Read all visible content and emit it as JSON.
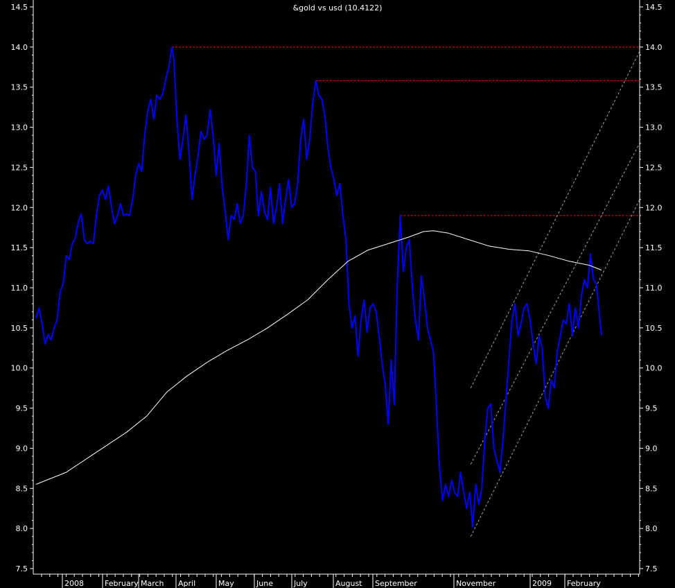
{
  "chart_data": {
    "type": "line",
    "title": "&gold vs usd (10.4122)",
    "xlabel": "",
    "ylabel": "",
    "ylim": [
      7.5,
      14.5
    ],
    "y_ticks": [
      "7.5",
      "8.0",
      "8.5",
      "9.0",
      "9.5",
      "10.0",
      "10.5",
      "11.0",
      "11.5",
      "12.0",
      "12.5",
      "13.0",
      "13.5",
      "14.0",
      "14.5"
    ],
    "x_tick_labels": [
      "2008",
      "February",
      "March",
      "April",
      "May",
      "June",
      "July",
      "August",
      "September",
      "November",
      "2009",
      "February"
    ],
    "grid": false,
    "background_color": "#000000",
    "series": [
      {
        "color": "#0000ff",
        "values": [
          [
            0,
            10.62
          ],
          [
            3,
            10.75
          ],
          [
            6,
            10.55
          ],
          [
            9,
            10.3
          ],
          [
            12,
            10.42
          ],
          [
            15,
            10.35
          ],
          [
            18,
            10.5
          ],
          [
            21,
            10.6
          ],
          [
            24,
            10.95
          ],
          [
            27,
            11.05
          ],
          [
            30,
            11.4
          ],
          [
            33,
            11.35
          ],
          [
            36,
            11.55
          ],
          [
            39,
            11.62
          ],
          [
            42,
            11.82
          ],
          [
            45,
            11.92
          ],
          [
            48,
            11.6
          ],
          [
            51,
            11.55
          ],
          [
            54,
            11.58
          ],
          [
            57,
            11.55
          ],
          [
            60,
            11.9
          ],
          [
            63,
            12.15
          ],
          [
            66,
            12.22
          ],
          [
            69,
            12.1
          ],
          [
            72,
            12.27
          ],
          [
            75,
            12.0
          ],
          [
            78,
            11.8
          ],
          [
            81,
            11.9
          ],
          [
            84,
            12.05
          ],
          [
            87,
            11.9
          ],
          [
            90,
            11.92
          ],
          [
            93,
            11.9
          ],
          [
            96,
            12.1
          ],
          [
            99,
            12.4
          ],
          [
            102,
            12.55
          ],
          [
            105,
            12.45
          ],
          [
            108,
            12.9
          ],
          [
            111,
            13.2
          ],
          [
            114,
            13.35
          ],
          [
            117,
            13.1
          ],
          [
            120,
            13.4
          ],
          [
            123,
            13.35
          ],
          [
            126,
            13.42
          ],
          [
            129,
            13.6
          ],
          [
            132,
            13.75
          ],
          [
            135,
            14.0
          ],
          [
            137,
            13.85
          ],
          [
            140,
            13.1
          ],
          [
            143,
            12.6
          ],
          [
            146,
            12.85
          ],
          [
            149,
            13.15
          ],
          [
            152,
            12.7
          ],
          [
            155,
            12.1
          ],
          [
            158,
            12.4
          ],
          [
            161,
            12.65
          ],
          [
            164,
            12.95
          ],
          [
            167,
            12.85
          ],
          [
            170,
            12.9
          ],
          [
            173,
            13.22
          ],
          [
            176,
            12.9
          ],
          [
            179,
            12.4
          ],
          [
            182,
            12.8
          ],
          [
            185,
            12.25
          ],
          [
            188,
            11.95
          ],
          [
            191,
            11.6
          ],
          [
            194,
            11.9
          ],
          [
            197,
            11.85
          ],
          [
            200,
            12.05
          ],
          [
            203,
            11.8
          ],
          [
            206,
            11.9
          ],
          [
            209,
            12.3
          ],
          [
            212,
            12.9
          ],
          [
            215,
            12.5
          ],
          [
            218,
            12.45
          ],
          [
            221,
            11.9
          ],
          [
            224,
            12.2
          ],
          [
            227,
            11.95
          ],
          [
            230,
            11.85
          ],
          [
            233,
            12.25
          ],
          [
            236,
            11.8
          ],
          [
            239,
            12.0
          ],
          [
            242,
            12.3
          ],
          [
            245,
            11.8
          ],
          [
            248,
            12.1
          ],
          [
            251,
            12.35
          ],
          [
            254,
            12.0
          ],
          [
            257,
            12.05
          ],
          [
            260,
            12.3
          ],
          [
            263,
            12.85
          ],
          [
            266,
            13.1
          ],
          [
            269,
            12.6
          ],
          [
            272,
            12.85
          ],
          [
            275,
            13.3
          ],
          [
            278,
            13.58
          ],
          [
            281,
            13.4
          ],
          [
            284,
            13.35
          ],
          [
            287,
            13.15
          ],
          [
            290,
            12.75
          ],
          [
            293,
            12.5
          ],
          [
            296,
            12.35
          ],
          [
            299,
            12.15
          ],
          [
            302,
            12.3
          ],
          [
            305,
            11.9
          ],
          [
            308,
            11.6
          ],
          [
            311,
            10.8
          ],
          [
            314,
            10.5
          ],
          [
            317,
            10.65
          ],
          [
            320,
            10.15
          ],
          [
            323,
            10.6
          ],
          [
            326,
            10.85
          ],
          [
            329,
            10.45
          ],
          [
            332,
            10.75
          ],
          [
            335,
            10.8
          ],
          [
            338,
            10.7
          ],
          [
            341,
            10.4
          ],
          [
            344,
            10.05
          ],
          [
            347,
            9.8
          ],
          [
            350,
            9.3
          ],
          [
            353,
            10.1
          ],
          [
            356,
            9.55
          ],
          [
            359,
            11.05
          ],
          [
            362,
            11.9
          ],
          [
            365,
            11.2
          ],
          [
            368,
            11.5
          ],
          [
            371,
            11.6
          ],
          [
            374,
            11.0
          ],
          [
            377,
            10.6
          ],
          [
            380,
            10.35
          ],
          [
            383,
            11.15
          ],
          [
            386,
            10.85
          ],
          [
            389,
            10.5
          ],
          [
            392,
            10.35
          ],
          [
            395,
            10.2
          ],
          [
            398,
            9.5
          ],
          [
            401,
            8.75
          ],
          [
            404,
            8.35
          ],
          [
            407,
            8.55
          ],
          [
            410,
            8.4
          ],
          [
            413,
            8.6
          ],
          [
            416,
            8.45
          ],
          [
            419,
            8.4
          ],
          [
            422,
            8.7
          ],
          [
            425,
            8.45
          ],
          [
            428,
            8.25
          ],
          [
            431,
            8.45
          ],
          [
            434,
            8.02
          ],
          [
            437,
            8.55
          ],
          [
            440,
            8.3
          ],
          [
            443,
            8.5
          ],
          [
            446,
            9.1
          ],
          [
            449,
            9.5
          ],
          [
            452,
            9.55
          ],
          [
            455,
            9.0
          ],
          [
            458,
            8.85
          ],
          [
            461,
            8.7
          ],
          [
            464,
            9.1
          ],
          [
            467,
            9.6
          ],
          [
            470,
            10.1
          ],
          [
            473,
            10.6
          ],
          [
            476,
            10.8
          ],
          [
            479,
            10.4
          ],
          [
            482,
            10.55
          ],
          [
            485,
            10.75
          ],
          [
            488,
            10.8
          ],
          [
            491,
            10.6
          ],
          [
            494,
            10.3
          ],
          [
            497,
            10.05
          ],
          [
            500,
            10.4
          ],
          [
            503,
            10.25
          ],
          [
            506,
            9.65
          ],
          [
            509,
            9.5
          ],
          [
            512,
            9.85
          ],
          [
            515,
            9.75
          ],
          [
            518,
            10.2
          ],
          [
            521,
            10.4
          ],
          [
            524,
            10.6
          ],
          [
            527,
            10.55
          ],
          [
            530,
            10.8
          ],
          [
            533,
            10.4
          ],
          [
            536,
            10.75
          ],
          [
            539,
            10.5
          ],
          [
            542,
            10.9
          ],
          [
            545,
            11.1
          ],
          [
            548,
            11.0
          ],
          [
            551,
            11.42
          ],
          [
            554,
            11.1
          ],
          [
            557,
            11.05
          ],
          [
            560,
            10.65
          ],
          [
            562,
            10.41
          ]
        ]
      },
      {
        "color": "#ffffff",
        "values": [
          [
            0,
            8.55
          ],
          [
            30,
            8.7
          ],
          [
            60,
            8.95
          ],
          [
            90,
            9.2
          ],
          [
            110,
            9.4
          ],
          [
            130,
            9.7
          ],
          [
            150,
            9.9
          ],
          [
            170,
            10.07
          ],
          [
            190,
            10.22
          ],
          [
            210,
            10.35
          ],
          [
            230,
            10.5
          ],
          [
            250,
            10.67
          ],
          [
            270,
            10.85
          ],
          [
            290,
            11.1
          ],
          [
            310,
            11.33
          ],
          [
            330,
            11.47
          ],
          [
            350,
            11.55
          ],
          [
            370,
            11.63
          ],
          [
            385,
            11.7
          ],
          [
            395,
            11.71
          ],
          [
            410,
            11.68
          ],
          [
            430,
            11.6
          ],
          [
            450,
            11.52
          ],
          [
            470,
            11.48
          ],
          [
            490,
            11.46
          ],
          [
            510,
            11.4
          ],
          [
            530,
            11.33
          ],
          [
            550,
            11.28
          ],
          [
            562,
            11.22
          ]
        ]
      }
    ],
    "reference_lines": [
      {
        "color": "#ff0000",
        "style": "dashed",
        "y": 14.0,
        "x_start": 135,
        "x_end": 562
      },
      {
        "color": "#ff0000",
        "style": "dashed",
        "y": 13.58,
        "x_start": 278,
        "x_end": 562
      },
      {
        "color": "#ff0000",
        "style": "dashed",
        "y": 11.9,
        "x_start": 362,
        "x_end": 562
      }
    ],
    "trend_channel": {
      "color": "#aaaaaa",
      "style": "dashed",
      "lines": [
        {
          "x1": 432,
          "y1": 9.75,
          "x2": 562,
          "y2": 13.0
        },
        {
          "x1": 432,
          "y1": 8.8,
          "x2": 562,
          "y2": 11.9
        },
        {
          "x1": 432,
          "y1": 7.9,
          "x2": 562,
          "y2": 11.15
        }
      ]
    }
  }
}
